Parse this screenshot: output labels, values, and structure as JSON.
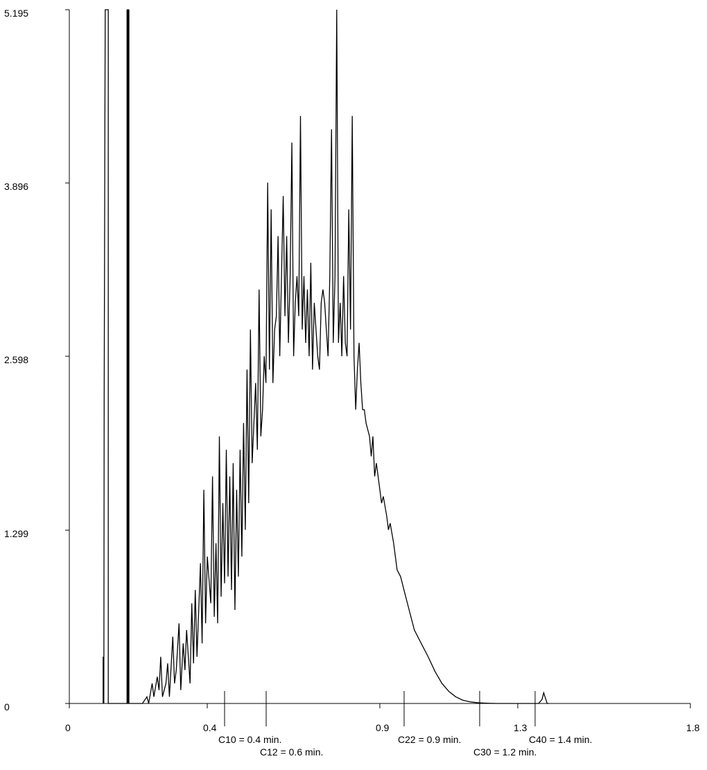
{
  "chart_data": {
    "type": "line",
    "title": "",
    "xlabel": "",
    "ylabel": "",
    "xlim": [
      0,
      1.8
    ],
    "ylim": [
      0,
      5.195
    ],
    "x_ticks": [
      {
        "value": 0,
        "label": "0"
      },
      {
        "value": 0.4,
        "label": "0.4"
      },
      {
        "value": 0.9,
        "label": "0.9"
      },
      {
        "value": 1.3,
        "label": "1.3"
      },
      {
        "value": 1.8,
        "label": "1.8"
      }
    ],
    "y_ticks": [
      {
        "value": 0,
        "label": "0"
      },
      {
        "value": 1.299,
        "label": "1.299"
      },
      {
        "value": 2.598,
        "label": "2.598"
      },
      {
        "value": 3.896,
        "label": "3.896"
      },
      {
        "value": 5.195,
        "label": "5.195"
      }
    ],
    "grid": false,
    "markers": [
      {
        "x": 0.45,
        "label": "C10 = 0.4 min.",
        "row": 1
      },
      {
        "x": 0.57,
        "label": "C12 = 0.6 min.",
        "row": 2
      },
      {
        "x": 0.97,
        "label": "C22 = 0.9 min.",
        "row": 1
      },
      {
        "x": 1.19,
        "label": "C30 = 1.2 min.",
        "row": 2
      },
      {
        "x": 1.35,
        "label": "C40 = 1.4 min.",
        "row": 1
      }
    ],
    "series": [
      {
        "line_color": "#000000",
        "x": [
          0.098,
          0.098,
          0.1,
          0.101,
          0.103,
          0.104,
          0.106,
          0.108,
          0.113,
          0.113,
          0.169,
          0.169,
          0.171,
          0.171,
          0.175,
          0.175,
          0.212,
          0.225,
          0.23,
          0.24,
          0.245,
          0.255,
          0.26,
          0.265,
          0.27,
          0.28,
          0.285,
          0.29,
          0.3,
          0.305,
          0.31,
          0.318,
          0.323,
          0.33,
          0.335,
          0.34,
          0.35,
          0.355,
          0.36,
          0.365,
          0.37,
          0.38,
          0.385,
          0.39,
          0.395,
          0.4,
          0.41,
          0.415,
          0.42,
          0.425,
          0.43,
          0.435,
          0.44,
          0.445,
          0.45,
          0.455,
          0.46,
          0.465,
          0.47,
          0.475,
          0.48,
          0.485,
          0.49,
          0.495,
          0.5,
          0.505,
          0.51,
          0.515,
          0.52,
          0.525,
          0.53,
          0.535,
          0.54,
          0.545,
          0.55,
          0.555,
          0.56,
          0.565,
          0.57,
          0.575,
          0.58,
          0.585,
          0.59,
          0.595,
          0.6,
          0.605,
          0.61,
          0.615,
          0.62,
          0.625,
          0.63,
          0.635,
          0.64,
          0.645,
          0.65,
          0.655,
          0.66,
          0.665,
          0.67,
          0.675,
          0.68,
          0.685,
          0.69,
          0.695,
          0.7,
          0.705,
          0.71,
          0.715,
          0.72,
          0.725,
          0.73,
          0.735,
          0.74,
          0.745,
          0.75,
          0.755,
          0.76,
          0.765,
          0.77,
          0.775,
          0.78,
          0.785,
          0.79,
          0.795,
          0.8,
          0.805,
          0.81,
          0.815,
          0.82,
          0.825,
          0.83,
          0.835,
          0.84,
          0.845,
          0.85,
          0.855,
          0.86,
          0.87,
          0.875,
          0.88,
          0.885,
          0.89,
          0.9,
          0.905,
          0.91,
          0.92,
          0.925,
          0.93,
          0.94,
          0.945,
          0.95,
          0.96,
          0.97,
          0.98,
          0.99,
          1.0,
          1.02,
          1.04,
          1.06,
          1.08,
          1.1,
          1.12,
          1.14,
          1.16,
          1.18,
          1.2,
          1.22,
          1.24,
          1.26,
          1.28,
          1.3,
          1.32,
          1.36,
          1.37,
          1.375,
          1.38,
          1.385,
          1.39
        ],
        "y": [
          0,
          0.35,
          0.0,
          2.3,
          4.3,
          5.195,
          5.195,
          5.195,
          5.195,
          0,
          0,
          5.195,
          5.195,
          0,
          0,
          0,
          0.0,
          0.05,
          0.0,
          0.15,
          0.05,
          0.2,
          0.1,
          0.35,
          0.05,
          0.15,
          0.3,
          0.05,
          0.5,
          0.15,
          0.25,
          0.6,
          0.1,
          0.45,
          0.25,
          0.55,
          0.15,
          0.75,
          0.3,
          0.85,
          0.35,
          1.05,
          0.45,
          1.6,
          0.6,
          1.1,
          0.75,
          1.7,
          0.65,
          1.2,
          0.6,
          2.0,
          0.8,
          1.5,
          0.9,
          1.9,
          0.95,
          1.7,
          0.85,
          1.8,
          0.7,
          1.6,
          0.95,
          1.9,
          1.1,
          2.1,
          1.3,
          2.5,
          1.5,
          2.8,
          1.8,
          2.1,
          2.4,
          1.9,
          3.1,
          2.0,
          2.2,
          2.6,
          2.4,
          3.9,
          2.5,
          3.7,
          2.4,
          2.8,
          2.9,
          3.5,
          2.6,
          3.2,
          3.8,
          2.9,
          3.5,
          2.7,
          3.2,
          4.2,
          2.6,
          3.0,
          3.2,
          2.9,
          4.4,
          2.8,
          3.2,
          2.7,
          3.1,
          2.6,
          3.3,
          2.5,
          3.0,
          2.8,
          2.6,
          2.5,
          3.0,
          3.1,
          3.0,
          2.8,
          2.6,
          3.2,
          4.3,
          2.7,
          3.2,
          5.195,
          2.7,
          3.0,
          2.6,
          3.2,
          2.7,
          2.6,
          3.7,
          2.8,
          4.4,
          2.6,
          2.2,
          2.5,
          2.7,
          2.4,
          2.2,
          2.2,
          2.1,
          2.0,
          1.85,
          2.0,
          1.7,
          1.8,
          1.6,
          1.5,
          1.55,
          1.4,
          1.3,
          1.35,
          1.2,
          1.1,
          1.0,
          0.95,
          0.85,
          0.75,
          0.65,
          0.55,
          0.45,
          0.35,
          0.24,
          0.15,
          0.09,
          0.05,
          0.025,
          0.013,
          0.006,
          0.003,
          0.001,
          0.0,
          0.0,
          0.0,
          0.0,
          0.0,
          0.0,
          0.03,
          0.08,
          0.04,
          0.0,
          0.0
        ]
      }
    ]
  }
}
